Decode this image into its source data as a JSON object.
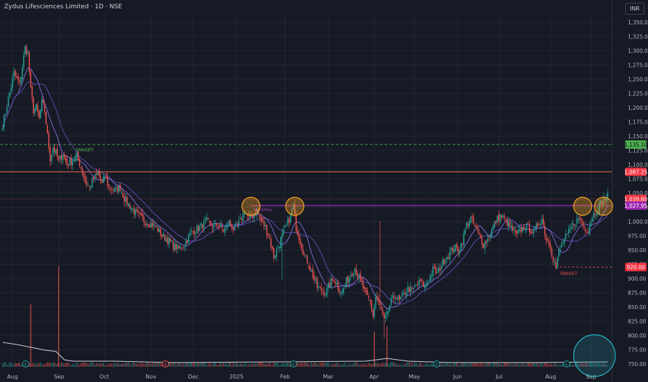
{
  "header": {
    "title": "Zydus Lifesciences Limited · 1D · NSE",
    "currency_button": "INR"
  },
  "chart_data": {
    "type": "candlestick",
    "ylim": [
      745,
      1362
    ],
    "y_ticks": [
      750,
      775,
      800,
      825,
      850,
      875,
      900,
      925,
      950,
      975,
      1000,
      1025,
      1050,
      1075,
      1100,
      1125,
      1150,
      1175,
      1200,
      1225,
      1250,
      1275,
      1300,
      1325,
      1350
    ],
    "x_ticks": [
      "Aug",
      "Sep",
      "Oct",
      "Nov",
      "Dec",
      "2025",
      "Feb",
      "Mar",
      "Apr",
      "May",
      "Jun",
      "Jul",
      "Aug",
      "Sep"
    ],
    "price_path": [
      [
        0,
        1170
      ],
      [
        4,
        1215
      ],
      [
        8,
        1260
      ],
      [
        12,
        1240
      ],
      [
        16,
        1305
      ],
      [
        18,
        1295
      ],
      [
        20,
        1230
      ],
      [
        22,
        1195
      ],
      [
        24,
        1200
      ],
      [
        26,
        1180
      ],
      [
        28,
        1210
      ],
      [
        30,
        1195
      ],
      [
        32,
        1150
      ],
      [
        34,
        1110
      ],
      [
        36,
        1130
      ],
      [
        38,
        1120
      ],
      [
        40,
        1105
      ],
      [
        43,
        1120
      ],
      [
        46,
        1100
      ],
      [
        50,
        1108
      ],
      [
        53,
        1115
      ],
      [
        56,
        1095
      ],
      [
        59,
        1070
      ],
      [
        62,
        1060
      ],
      [
        65,
        1075
      ],
      [
        68,
        1085
      ],
      [
        71,
        1065
      ],
      [
        73,
        1080
      ],
      [
        76,
        1060
      ],
      [
        80,
        1055
      ],
      [
        84,
        1060
      ],
      [
        87,
        1040
      ],
      [
        90,
        1030
      ],
      [
        94,
        1018
      ],
      [
        98,
        1008
      ],
      [
        102,
        1000
      ],
      [
        106,
        995
      ],
      [
        110,
        990
      ],
      [
        114,
        975
      ],
      [
        118,
        968
      ],
      [
        122,
        958
      ],
      [
        126,
        952
      ],
      [
        130,
        960
      ],
      [
        134,
        978
      ],
      [
        138,
        985
      ],
      [
        142,
        992
      ],
      [
        146,
        1000
      ],
      [
        150,
        990
      ],
      [
        154,
        995
      ],
      [
        158,
        985
      ],
      [
        162,
        998
      ],
      [
        166,
        985
      ],
      [
        170,
        1000
      ],
      [
        173,
        1020
      ],
      [
        176,
        1005
      ],
      [
        179,
        1012
      ],
      [
        182,
        1018
      ],
      [
        185,
        1000
      ],
      [
        188,
        990
      ],
      [
        191,
        970
      ],
      [
        194,
        938
      ],
      [
        197,
        955
      ],
      [
        200,
        975
      ],
      [
        203,
        992
      ],
      [
        206,
        1010
      ],
      [
        208,
        1025
      ],
      [
        210,
        990
      ],
      [
        213,
        965
      ],
      [
        216,
        940
      ],
      [
        219,
        925
      ],
      [
        222,
        905
      ],
      [
        225,
        885
      ],
      [
        228,
        880
      ],
      [
        231,
        875
      ],
      [
        234,
        890
      ],
      [
        237,
        900
      ],
      [
        240,
        885
      ],
      [
        243,
        875
      ],
      [
        246,
        895
      ],
      [
        249,
        908
      ],
      [
        252,
        918
      ],
      [
        254,
        905
      ],
      [
        257,
        890
      ],
      [
        260,
        870
      ],
      [
        263,
        860
      ],
      [
        265,
        835
      ],
      [
        267,
        870
      ],
      [
        269,
        855
      ],
      [
        271,
        845
      ],
      [
        273,
        825
      ],
      [
        275,
        835
      ],
      [
        278,
        860
      ],
      [
        281,
        870
      ],
      [
        284,
        860
      ],
      [
        287,
        872
      ],
      [
        290,
        882
      ],
      [
        293,
        878
      ],
      [
        296,
        888
      ],
      [
        299,
        895
      ],
      [
        302,
        885
      ],
      [
        305,
        900
      ],
      [
        308,
        915
      ],
      [
        311,
        908
      ],
      [
        314,
        925
      ],
      [
        317,
        935
      ],
      [
        320,
        945
      ],
      [
        323,
        955
      ],
      [
        326,
        950
      ],
      [
        329,
        965
      ],
      [
        332,
        995
      ],
      [
        335,
        1005
      ],
      [
        338,
        990
      ],
      [
        341,
        975
      ],
      [
        344,
        960
      ],
      [
        347,
        968
      ],
      [
        350,
        985
      ],
      [
        353,
        1000
      ],
      [
        356,
        1010
      ],
      [
        359,
        1005
      ],
      [
        362,
        995
      ],
      [
        365,
        985
      ],
      [
        368,
        975
      ],
      [
        371,
        985
      ],
      [
        374,
        992
      ],
      [
        377,
        988
      ],
      [
        380,
        980
      ],
      [
        383,
        995
      ],
      [
        386,
        1005
      ],
      [
        389,
        970
      ],
      [
        392,
        958
      ],
      [
        394,
        935
      ],
      [
        396,
        918
      ],
      [
        398,
        945
      ],
      [
        401,
        965
      ],
      [
        404,
        975
      ],
      [
        407,
        990
      ],
      [
        410,
        1000
      ],
      [
        413,
        1005
      ],
      [
        416,
        990
      ],
      [
        419,
        985
      ],
      [
        422,
        1010
      ],
      [
        425,
        1020
      ],
      [
        428,
        1032
      ],
      [
        431,
        1040
      ],
      [
        433,
        1045
      ]
    ],
    "volume_spikes": [
      {
        "index": 20,
        "height": 90
      },
      {
        "index": 40,
        "height": 145
      },
      {
        "index": 266,
        "height": 50
      },
      {
        "index": 275,
        "height": 58
      }
    ],
    "volume_avg_path": [
      [
        0,
        35
      ],
      [
        10,
        32
      ],
      [
        20,
        28
      ],
      [
        30,
        24
      ],
      [
        38,
        22
      ],
      [
        44,
        10
      ],
      [
        50,
        8
      ],
      [
        80,
        8
      ],
      [
        120,
        6
      ],
      [
        200,
        7
      ],
      [
        260,
        8
      ],
      [
        275,
        12
      ],
      [
        290,
        8
      ],
      [
        320,
        6
      ],
      [
        380,
        6
      ],
      [
        433,
        7
      ]
    ],
    "levels": {
      "target_upper": 1135.1,
      "resistance": 1087.25,
      "last_price": 1039.6,
      "breakout": 1027.95,
      "target_lower": 920.0
    },
    "price_labels": {
      "target_upper": "1,135.10",
      "resistance": "1,087.25",
      "last_price": "1,039.60",
      "breakout": "1,027.95",
      "target_lower": "920.00"
    },
    "annotations": {
      "upper_target": "TARGET",
      "lower_target": "TARGET",
      "breakout_line": "Neckline"
    },
    "earnings_markers": [
      "E",
      "E",
      "E",
      "E",
      "E",
      "E"
    ]
  },
  "colors": {
    "background": "#161a25",
    "up": "#26a69a",
    "down": "#ef5350",
    "target_upper_line": "#4caf50",
    "resistance_line": "#f26c4f",
    "neckline": "#9c27b0",
    "ma_fast": "#9c7bff",
    "ma_slow": "#6a5acd",
    "circle_orange": "#f5a623",
    "circle_teal": "#29b6c6",
    "grid": "#232735"
  }
}
